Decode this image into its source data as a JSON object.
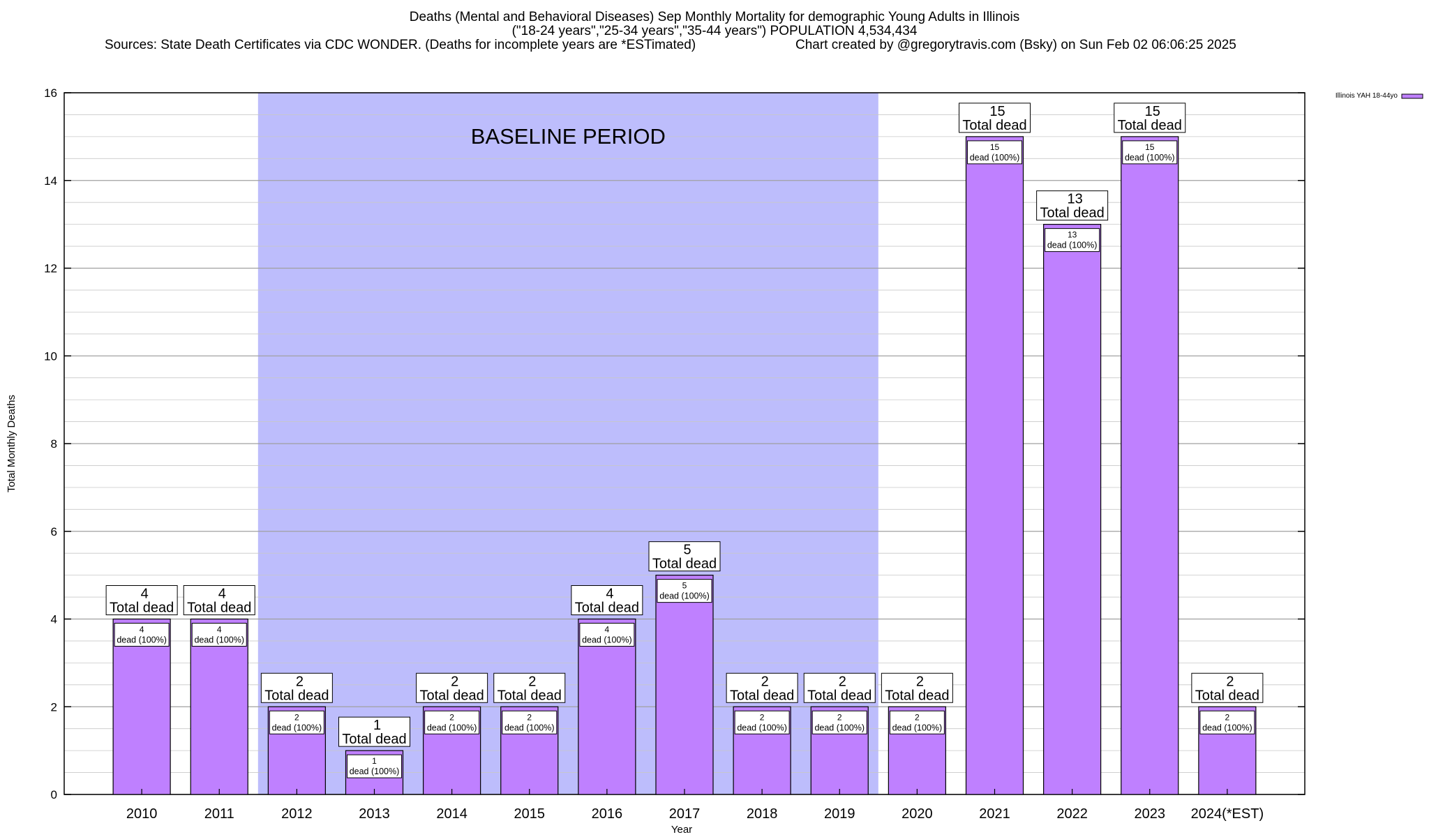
{
  "header": {
    "title_line1": "Deaths (Mental and Behavioral Diseases) Sep Monthly Mortality for demographic Young Adults in Illinois",
    "title_line2": "(\"18-24 years\",\"25-34 years\",\"35-44 years\") POPULATION 4,534,434",
    "sources": "Sources: State Death Certificates via CDC WONDER. (Deaths for incomplete years are *ESTimated)",
    "credit": "Chart created by @gregorytravis.com (Bsky) on Sun Feb 02 06:06:25 2025"
  },
  "chart_data": {
    "type": "bar",
    "xlabel": "Year",
    "ylabel": "Total Monthly Deaths",
    "ylim": [
      0,
      16
    ],
    "y_ticks": [
      0,
      2,
      4,
      6,
      8,
      10,
      12,
      14,
      16
    ],
    "grid": true,
    "legend": {
      "position": "top-right",
      "label": "Illinois YAH 18-44yo"
    },
    "baseline_band": {
      "label": "BASELINE PERIOD",
      "from": "2012",
      "to": "2019",
      "color": "#bdbdfc"
    },
    "bar_color": "#bf80ff",
    "categories": [
      "2010",
      "2011",
      "2012",
      "2013",
      "2014",
      "2015",
      "2016",
      "2017",
      "2018",
      "2019",
      "2020",
      "2021",
      "2022",
      "2023",
      "2024(*EST)"
    ],
    "series": [
      {
        "name": "Illinois YAH 18-44yo",
        "values": [
          4,
          4,
          2,
          1,
          2,
          2,
          4,
          5,
          2,
          2,
          2,
          15,
          13,
          15,
          2
        ]
      }
    ],
    "total_label_suffix": "Total dead",
    "inner_label_suffix": "dead (100%)"
  }
}
